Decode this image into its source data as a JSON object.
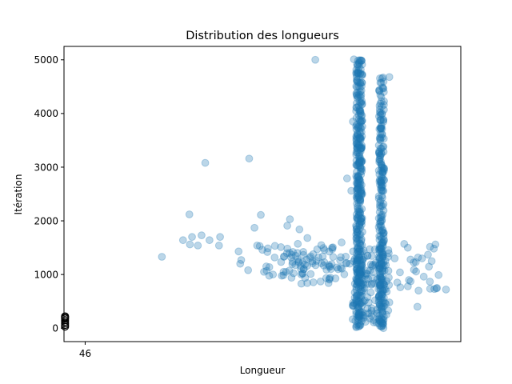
{
  "chart_data": {
    "type": "scatter",
    "title": "Distribution des longueurs",
    "xlabel": "Longueur",
    "ylabel": "Itération",
    "xlim": [
      45.6,
      53.1
    ],
    "ylim": [
      -250,
      5250
    ],
    "x_ticks": [
      46
    ],
    "y_ticks": [
      0,
      1000,
      2000,
      3000,
      4000,
      5000
    ],
    "grid": false,
    "marker_color": "#1f77b4",
    "marker_alpha": 0.3,
    "highlight_color": "#000000",
    "highlight_points": [
      {
        "x": 45.62,
        "y": 30
      },
      {
        "x": 45.62,
        "y": 60
      },
      {
        "x": 45.62,
        "y": 90
      },
      {
        "x": 45.62,
        "y": 120
      },
      {
        "x": 45.62,
        "y": 150
      },
      {
        "x": 45.62,
        "y": 180
      },
      {
        "x": 45.62,
        "y": 200
      },
      {
        "x": 45.62,
        "y": 220
      }
    ],
    "clusters": [
      {
        "x": 51.18,
        "y_min": 0,
        "y_max": 5000,
        "count": 380,
        "jitter": 0.06
      },
      {
        "x": 51.6,
        "y_min": 0,
        "y_max": 4700,
        "count": 260,
        "jitter": 0.05
      },
      {
        "x": 51.4,
        "y_min": 100,
        "y_max": 1500,
        "count": 120,
        "jitter": 0.35
      },
      {
        "x": 50.5,
        "y_min": 800,
        "y_max": 1600,
        "count": 50,
        "jitter": 0.45
      },
      {
        "x": 49.8,
        "y_min": 900,
        "y_max": 1600,
        "count": 40,
        "jitter": 0.4
      },
      {
        "x": 52.3,
        "y_min": 700,
        "y_max": 1600,
        "count": 16,
        "jitter": 0.35
      }
    ],
    "points": [
      {
        "x": 47.45,
        "y": 1330
      },
      {
        "x": 47.85,
        "y": 1640
      },
      {
        "x": 47.97,
        "y": 2120
      },
      {
        "x": 47.98,
        "y": 1560
      },
      {
        "x": 48.02,
        "y": 1700
      },
      {
        "x": 48.13,
        "y": 1540
      },
      {
        "x": 48.2,
        "y": 1730
      },
      {
        "x": 48.27,
        "y": 3080
      },
      {
        "x": 48.35,
        "y": 1640
      },
      {
        "x": 48.53,
        "y": 1540
      },
      {
        "x": 48.55,
        "y": 1700
      },
      {
        "x": 48.9,
        "y": 1430
      },
      {
        "x": 48.93,
        "y": 1200
      },
      {
        "x": 48.95,
        "y": 1270
      },
      {
        "x": 49.08,
        "y": 1080
      },
      {
        "x": 49.1,
        "y": 3160
      },
      {
        "x": 49.2,
        "y": 1870
      },
      {
        "x": 49.25,
        "y": 1540
      },
      {
        "x": 49.3,
        "y": 1530
      },
      {
        "x": 49.32,
        "y": 2110
      },
      {
        "x": 49.35,
        "y": 1460
      },
      {
        "x": 49.38,
        "y": 1050
      },
      {
        "x": 49.43,
        "y": 1070
      },
      {
        "x": 49.55,
        "y": 1000
      },
      {
        "x": 49.7,
        "y": 1510
      },
      {
        "x": 49.75,
        "y": 1050
      },
      {
        "x": 49.82,
        "y": 1910
      },
      {
        "x": 49.87,
        "y": 2030
      },
      {
        "x": 49.9,
        "y": 940
      },
      {
        "x": 50.05,
        "y": 1840
      },
      {
        "x": 50.2,
        "y": 1680
      },
      {
        "x": 50.35,
        "y": 5000
      },
      {
        "x": 50.3,
        "y": 1210
      },
      {
        "x": 50.45,
        "y": 870
      },
      {
        "x": 50.6,
        "y": 840
      },
      {
        "x": 50.95,
        "y": 2790
      },
      {
        "x": 51.0,
        "y": 1200
      },
      {
        "x": 51.03,
        "y": 2560
      },
      {
        "x": 51.06,
        "y": 3850
      },
      {
        "x": 51.08,
        "y": 5010
      },
      {
        "x": 51.75,
        "y": 4680
      },
      {
        "x": 51.85,
        "y": 1300
      },
      {
        "x": 51.9,
        "y": 850
      },
      {
        "x": 52.03,
        "y": 1570
      },
      {
        "x": 52.1,
        "y": 780
      },
      {
        "x": 52.15,
        "y": 1280
      },
      {
        "x": 52.25,
        "y": 1230
      },
      {
        "x": 52.28,
        "y": 400
      },
      {
        "x": 52.4,
        "y": 960
      },
      {
        "x": 52.48,
        "y": 1370
      },
      {
        "x": 52.6,
        "y": 730
      },
      {
        "x": 52.62,
        "y": 1560
      },
      {
        "x": 52.55,
        "y": 1250
      },
      {
        "x": 52.65,
        "y": 750
      },
      {
        "x": 52.68,
        "y": 990
      },
      {
        "x": 52.82,
        "y": 720
      },
      {
        "x": 51.6,
        "y": 40
      },
      {
        "x": 51.6,
        "y": 110
      },
      {
        "x": 51.17,
        "y": 30
      },
      {
        "x": 51.3,
        "y": 120
      },
      {
        "x": 51.45,
        "y": 150
      },
      {
        "x": 51.75,
        "y": 480
      },
      {
        "x": 51.7,
        "y": 680
      },
      {
        "x": 51.95,
        "y": 1040
      }
    ]
  }
}
